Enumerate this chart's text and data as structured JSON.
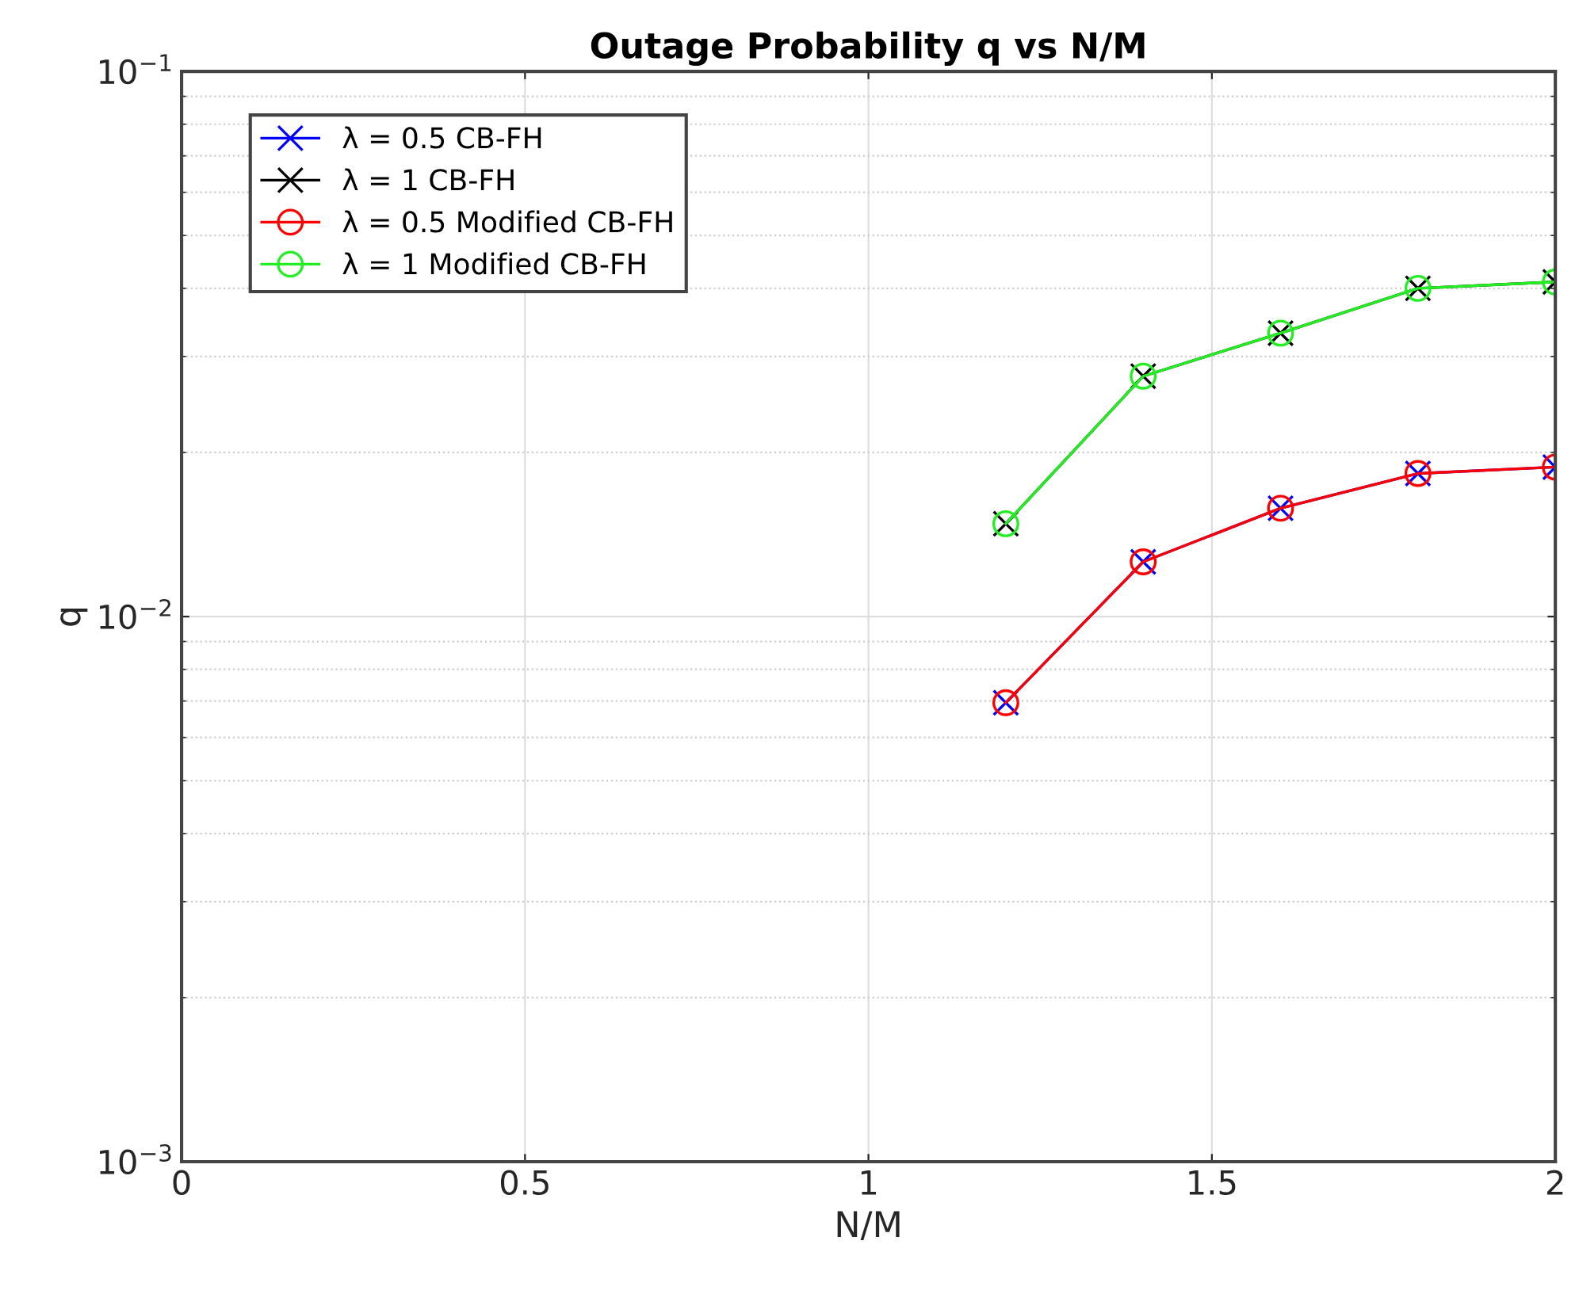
{
  "chart_data": {
    "type": "line",
    "title": "Outage Probability q vs N/M",
    "xlabel": "N/M",
    "ylabel": "q",
    "log": "y",
    "xlim": [
      0,
      2
    ],
    "ylim": [
      0.001,
      0.1
    ],
    "xticks": [
      0,
      0.5,
      1,
      1.5,
      2
    ],
    "yticks": [
      {
        "value": 0.001,
        "label": "10$^{−3}$"
      },
      {
        "value": 0.01,
        "label": "10$^{−2}$"
      },
      {
        "value": 0.1,
        "label": "10$^{−1}$"
      }
    ],
    "grid": true,
    "legend": "top left",
    "line_style": "solid",
    "series": [
      {
        "name": "λ = 0.5 CB-FH",
        "color": "#0000ff",
        "marker": "cross",
        "x": [
          1.2,
          1.4,
          1.6,
          1.8,
          2.0
        ],
        "values": [
          0.00695,
          0.0126,
          0.0158,
          0.0183,
          0.0188
        ]
      },
      {
        "name": "λ = 1 CB-FH",
        "color": "#000000",
        "marker": "cross",
        "x": [
          1.2,
          1.4,
          1.6,
          1.8,
          2.0
        ],
        "values": [
          0.0148,
          0.0276,
          0.0331,
          0.04,
          0.0411
        ]
      },
      {
        "name": "λ = 0.5 Modified CB-FH",
        "color": "#ff0000",
        "marker": "circle",
        "x": [
          1.2,
          1.4,
          1.6,
          1.8,
          2.0
        ],
        "values": [
          0.00695,
          0.0126,
          0.0158,
          0.0183,
          0.0188
        ]
      },
      {
        "name": "λ = 1 Modified CB-FH",
        "color": "#22ee22",
        "marker": "circle",
        "x": [
          1.2,
          1.4,
          1.6,
          1.8,
          2.0
        ],
        "values": [
          0.0148,
          0.0276,
          0.0331,
          0.04,
          0.0411
        ]
      }
    ]
  }
}
